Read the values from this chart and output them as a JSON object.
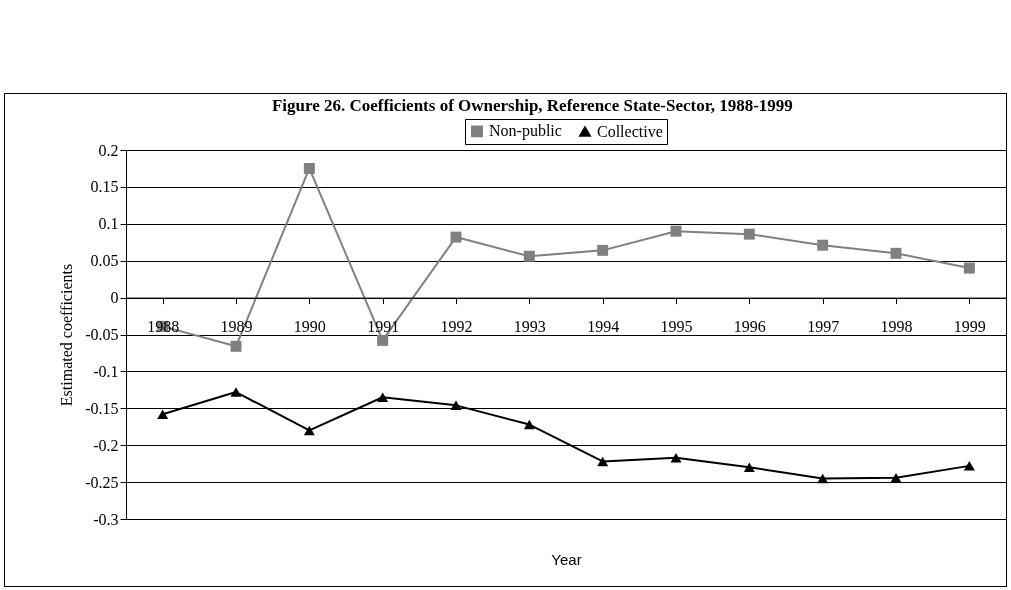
{
  "chart_data": {
    "type": "line",
    "title": "Figure 26.  Coefficients of Ownership, Reference State-Sector, 1988-1999",
    "xlabel": "Year",
    "ylabel": "Estimated coefficients",
    "categories": [
      "1988",
      "1989",
      "1990",
      "1991",
      "1992",
      "1993",
      "1994",
      "1995",
      "1996",
      "1997",
      "1998",
      "1999"
    ],
    "series": [
      {
        "name": "Non-public",
        "color": "#808080",
        "marker": "square",
        "values": [
          -0.039,
          -0.066,
          0.175,
          -0.058,
          0.082,
          0.056,
          0.064,
          0.09,
          0.086,
          0.071,
          0.06,
          0.04
        ]
      },
      {
        "name": "Collective",
        "color": "#000000",
        "marker": "triangle",
        "values": [
          -0.158,
          -0.128,
          -0.18,
          -0.135,
          -0.146,
          -0.172,
          -0.222,
          -0.217,
          -0.23,
          -0.245,
          -0.244,
          -0.228
        ]
      }
    ],
    "ylim": [
      -0.3,
      0.2
    ],
    "yticks": [
      -0.3,
      -0.25,
      -0.2,
      -0.15,
      -0.1,
      -0.05,
      0,
      0.05,
      0.1,
      0.15,
      0.2
    ],
    "grid": "y",
    "legend": "top",
    "line_style": "solid"
  }
}
